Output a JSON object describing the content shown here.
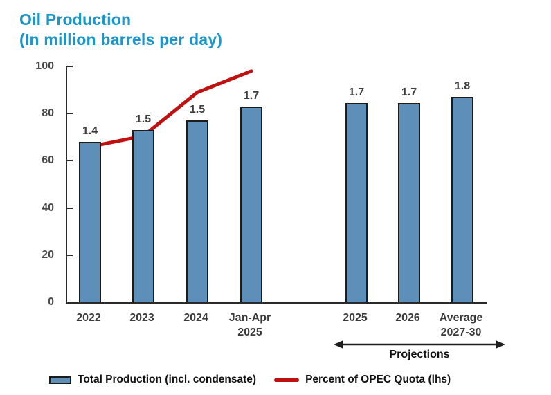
{
  "header": {
    "title": "Oil Production",
    "subtitle": "(In million barrels per day)",
    "title_color": "#1a96cb"
  },
  "chart_data": {
    "type": "combo",
    "title": "Oil Production",
    "subtitle": "(In million barrels per day)",
    "categories": [
      "2022",
      "2023",
      "2024",
      "Jan-Apr\n2025",
      "2025",
      "2026",
      "Average\n2027-30"
    ],
    "series": [
      {
        "name": "Total Production (incl. condensate)",
        "type": "bar",
        "values": [
          1.4,
          1.5,
          1.5,
          1.7,
          1.7,
          1.7,
          1.8
        ],
        "labels": [
          "1.4",
          "1.5",
          "1.5",
          "1.7",
          "1.7",
          "1.7",
          "1.8"
        ],
        "plotted_tops_on_left_axis": [
          68,
          73,
          77,
          83,
          84.5,
          84.5,
          87
        ],
        "color": "#5e8fb9",
        "border_color": "#1c1c1c"
      },
      {
        "name": "Percent of OPEC Quota (lhs)",
        "type": "line",
        "values": [
          66,
          70.5,
          89,
          98
        ],
        "applies_to_categories": [
          "2022",
          "2023",
          "2024",
          "Jan-Apr 2025"
        ],
        "color": "#c01010"
      }
    ],
    "y_axis": {
      "min": 0,
      "max": 100,
      "ticks": [
        0,
        20,
        40,
        60,
        80,
        100
      ]
    },
    "grid": "off",
    "legend_position": "bottom",
    "annotations": {
      "projections_label": "Projections",
      "projections_span_categories": [
        "2025",
        "2026",
        "Average 2027-30"
      ]
    }
  },
  "legend": {
    "items": [
      {
        "label": "Total Production (incl. condensate)",
        "swatch": "bar-swatch",
        "color": "#5e8fb9"
      },
      {
        "label": "Percent of OPEC Quota (lhs)",
        "swatch": "line-swatch",
        "color": "#c01010"
      }
    ]
  }
}
